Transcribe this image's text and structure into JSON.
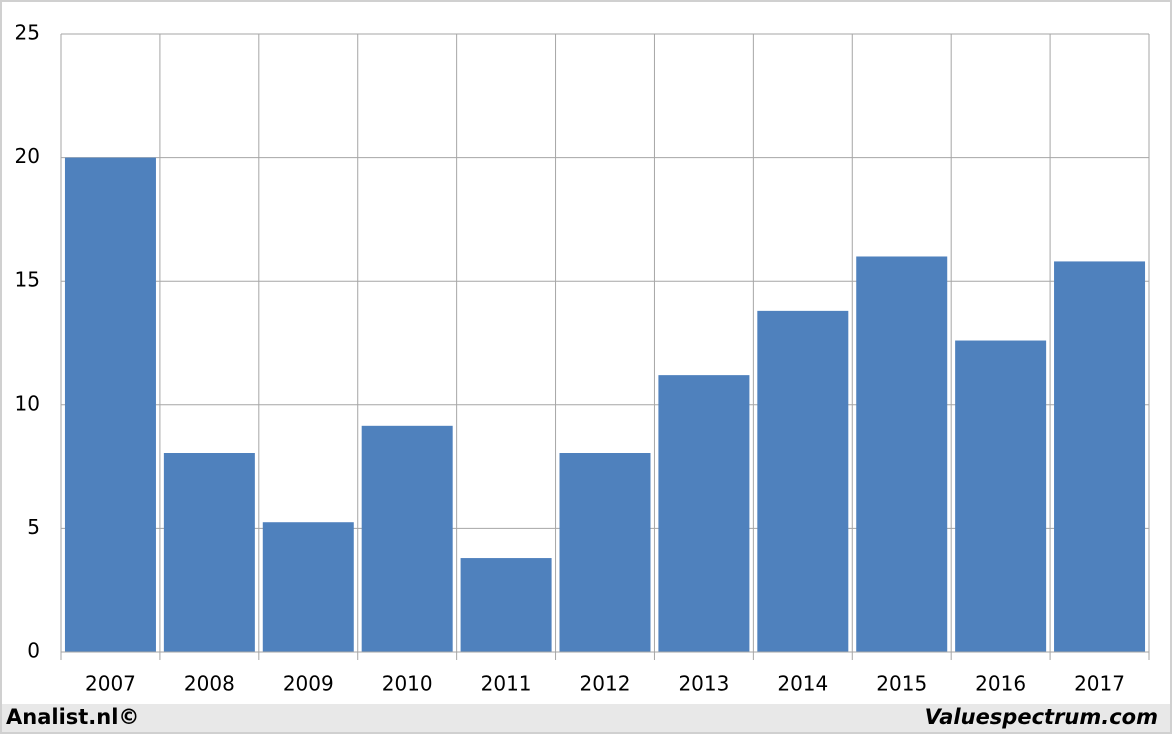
{
  "chart_data": {
    "type": "bar",
    "categories": [
      "2007",
      "2008",
      "2009",
      "2010",
      "2011",
      "2012",
      "2013",
      "2014",
      "2015",
      "2016",
      "2017"
    ],
    "values": [
      20,
      8.05,
      5.25,
      9.15,
      3.8,
      8.05,
      11.2,
      13.8,
      16,
      12.6,
      15.8
    ],
    "color": "#4f81bd",
    "ylim": [
      0,
      25
    ],
    "yticks": [
      0,
      5,
      10,
      15,
      20,
      25
    ],
    "grid": true,
    "footer_left": "Analist.nl©",
    "footer_right": "Valuespectrum.com"
  }
}
